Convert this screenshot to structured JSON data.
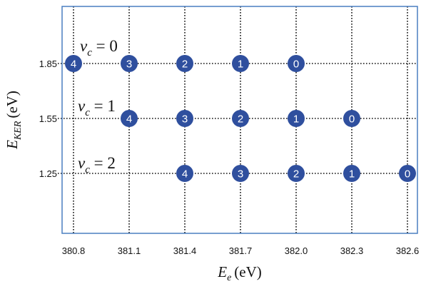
{
  "chart_data": {
    "type": "scatter",
    "title": "",
    "xlabel": {
      "main": "E",
      "sub": "e",
      "unit": "(eV)"
    },
    "ylabel": {
      "main": "E",
      "sub": "KER",
      "unit": "(eV)"
    },
    "x_ticks": [
      "380.8",
      "381.1",
      "381.4",
      "381.7",
      "382.0",
      "382.3",
      "382.6"
    ],
    "y_ticks": [
      "1.85",
      "1.55",
      "1.25"
    ],
    "xlim": [
      380.8,
      382.6
    ],
    "ylim": [
      1.0,
      2.1
    ],
    "grid": true,
    "grid_style": "dotted",
    "frame_color": "#4a7fc1",
    "marker_color": "#2f4f9e",
    "label_color": "#ffffff",
    "series": [
      {
        "annotation": {
          "var": "ν",
          "sub": "c",
          "rel": " = 0"
        },
        "y": 1.85,
        "x": [
          380.8,
          381.1,
          381.4,
          381.7,
          382.0
        ],
        "labels": [
          "4",
          "3",
          "2",
          "1",
          "0"
        ]
      },
      {
        "annotation": {
          "var": "ν",
          "sub": "c",
          "rel": " = 1"
        },
        "y": 1.55,
        "x": [
          381.1,
          381.4,
          381.7,
          382.0,
          382.3
        ],
        "labels": [
          "4",
          "3",
          "2",
          "1",
          "0"
        ]
      },
      {
        "annotation": {
          "var": "ν",
          "sub": "c",
          "rel": " = 2"
        },
        "y": 1.25,
        "x": [
          381.4,
          381.7,
          382.0,
          382.3,
          382.6
        ],
        "labels": [
          "4",
          "3",
          "2",
          "1",
          "0"
        ]
      }
    ]
  }
}
